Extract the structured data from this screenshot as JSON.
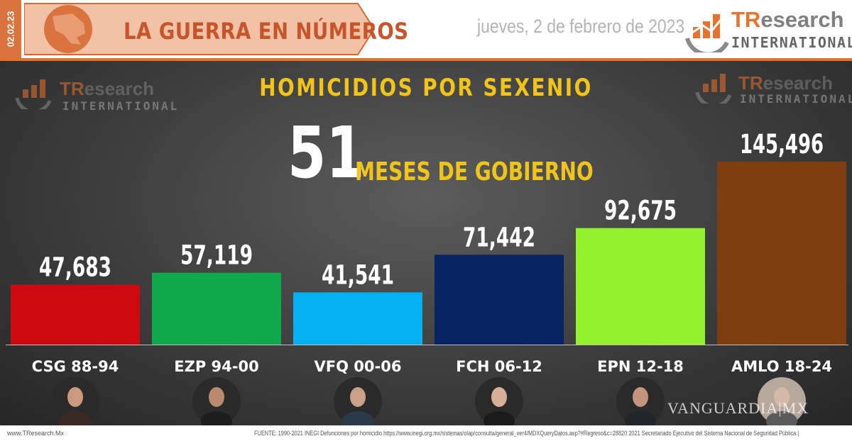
{
  "header": {
    "date_code": "02.02.23",
    "banner_title": "LA GUERRA EN NÚMEROS",
    "date_text": "jueves, 2 de febrero de 2023",
    "logo_tr": "TR",
    "logo_research": "esearch",
    "logo_international": "INTERNATIONAL"
  },
  "panel": {
    "months_number": "51",
    "months_text": "MESES DE GOBIERNO"
  },
  "chart_data": {
    "type": "bar",
    "title": "HOMICIDIOS POR SEXENIO",
    "categories": [
      "CSG 88-94",
      "EZP 94-00",
      "VFQ 00-06",
      "FCH 06-12",
      "EPN 12-18",
      "AMLO 18-24"
    ],
    "values": [
      47683,
      57119,
      41541,
      71442,
      92675,
      145496
    ],
    "value_labels": [
      "47,683",
      "57,119",
      "41,541",
      "71,442",
      "92,675",
      "145,496"
    ],
    "colors": [
      "#cc0a0f",
      "#0fa84a",
      "#05b0f0",
      "#062462",
      "#92f22c",
      "#7e3e0d"
    ],
    "xlabel": "",
    "ylabel": ""
  },
  "footer": {
    "website": "www.TResearch.Mx",
    "source": "FUENTE: 1990-2021 INEGI Defunciones por homicidio https://www.inegi.org.mx/sistemas/olap/consulta/general_ver4/MDXQueryDatos.asp?#Regreso&c=28820   2021 Secretariado Ejecutivo del Sistema Nacional de Seguridad Pública |"
  },
  "watermark": "VANGUARDIA|MX"
}
